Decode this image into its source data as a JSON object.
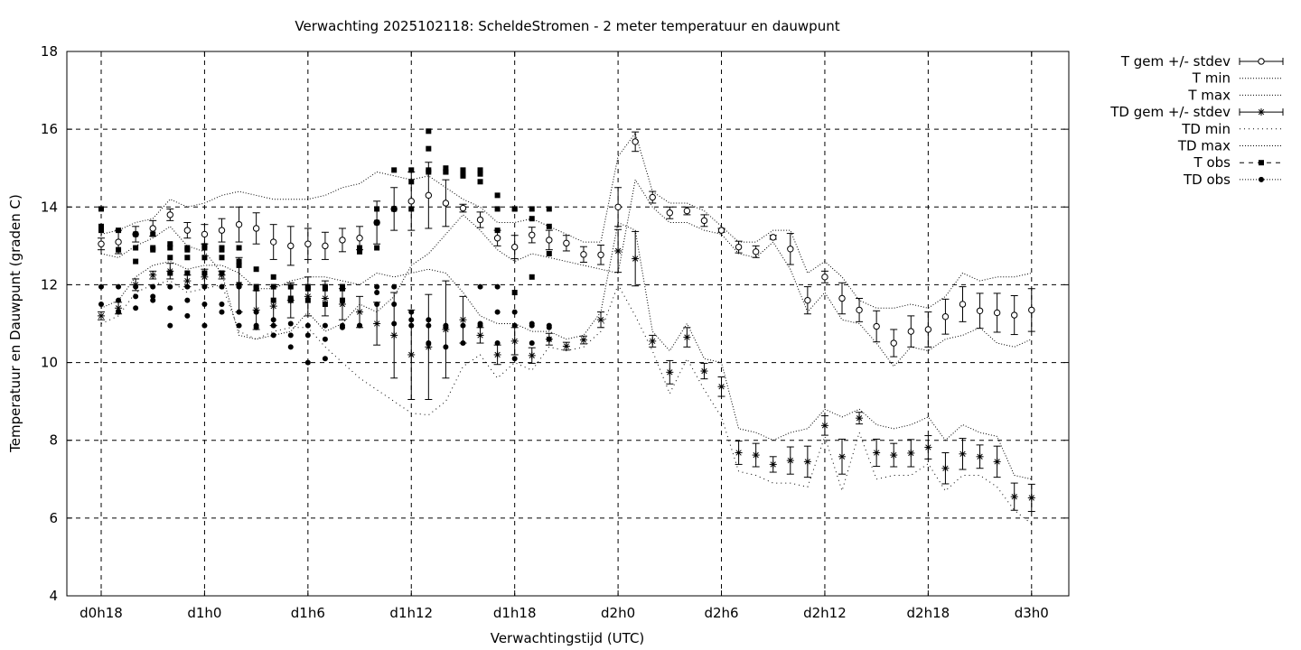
{
  "chart_data": {
    "type": "scatter",
    "title": "Verwachting 2025102118: ScheldeStromen - 2 meter temperatuur en dauwpunt",
    "xlabel": "Verwachtingstijd (UTC)",
    "ylabel": "Temperatuur en Dauwpunt (graden C)",
    "xlim": [
      -2,
      56
    ],
    "ylim": [
      4,
      18
    ],
    "x_ticks": [
      {
        "x": 0,
        "label": "d0h18"
      },
      {
        "x": 6,
        "label": "d1h0"
      },
      {
        "x": 12,
        "label": "d1h6"
      },
      {
        "x": 18,
        "label": "d1h12"
      },
      {
        "x": 24,
        "label": "d1h18"
      },
      {
        "x": 30,
        "label": "d2h0"
      },
      {
        "x": 36,
        "label": "d2h6"
      },
      {
        "x": 42,
        "label": "d2h12"
      },
      {
        "x": 48,
        "label": "d2h18"
      },
      {
        "x": 54,
        "label": "d3h0"
      }
    ],
    "y_ticks": [
      4,
      6,
      8,
      10,
      12,
      14,
      16,
      18
    ],
    "y_tick_labels": [
      "4",
      "6",
      "8",
      "10",
      "12",
      "14",
      "16",
      "18"
    ],
    "grid": true,
    "legend_position": "outside-right",
    "legend": [
      {
        "label": "T gem +/- stdev",
        "style": "errorbar-circle"
      },
      {
        "label": "T min",
        "style": "dotted"
      },
      {
        "label": "T max",
        "style": "dotted"
      },
      {
        "label": "TD gem +/- stdev",
        "style": "errorbar-star"
      },
      {
        "label": "TD min",
        "style": "dotted-sparse"
      },
      {
        "label": "TD max",
        "style": "dotted"
      },
      {
        "label": "T obs",
        "style": "dashed-square"
      },
      {
        "label": "TD obs",
        "style": "dotted-dot"
      }
    ],
    "series": [
      {
        "name": "T gem +/- stdev",
        "x": [
          0,
          1,
          2,
          3,
          4,
          5,
          6,
          7,
          8,
          9,
          10,
          11,
          12,
          13,
          14,
          15,
          16,
          17,
          18,
          19,
          20,
          21,
          22,
          23,
          24,
          25,
          26,
          27,
          28,
          29,
          30,
          31,
          32,
          33,
          34,
          35,
          36,
          37,
          38,
          39,
          40,
          41,
          42,
          43,
          44,
          45,
          46,
          47,
          48,
          49,
          50,
          51,
          52,
          53,
          54
        ],
        "values": [
          13.05,
          13.1,
          13.3,
          13.45,
          13.8,
          13.4,
          13.3,
          13.4,
          13.55,
          13.45,
          13.1,
          13.0,
          13.05,
          13.0,
          13.15,
          13.2,
          13.6,
          13.95,
          14.15,
          14.3,
          14.1,
          13.97,
          13.67,
          13.2,
          12.97,
          13.28,
          13.15,
          13.07,
          12.78,
          12.77,
          14.0,
          15.68,
          14.25,
          13.85,
          13.9,
          13.65,
          13.4,
          12.97,
          12.85,
          13.22,
          12.92,
          11.6,
          12.2,
          11.65,
          11.35,
          10.93,
          10.5,
          10.8,
          10.85,
          11.18,
          11.5,
          11.33,
          11.28,
          11.22,
          11.35
        ],
        "stdev": [
          0.15,
          0.3,
          0.2,
          0.2,
          0.15,
          0.2,
          0.25,
          0.3,
          0.45,
          0.4,
          0.45,
          0.5,
          0.4,
          0.35,
          0.3,
          0.3,
          0.55,
          0.55,
          0.75,
          0.85,
          0.6,
          0.1,
          0.2,
          0.2,
          0.3,
          0.2,
          0.25,
          0.2,
          0.2,
          0.25,
          0.5,
          0.25,
          0.15,
          0.15,
          0.1,
          0.15,
          0.05,
          0.15,
          0.15,
          0.05,
          0.4,
          0.35,
          0.15,
          0.4,
          0.3,
          0.4,
          0.35,
          0.4,
          0.45,
          0.45,
          0.45,
          0.45,
          0.5,
          0.5,
          0.55
        ]
      },
      {
        "name": "T min",
        "x": [
          0,
          1,
          2,
          3,
          4,
          5,
          6,
          7,
          8,
          9,
          10,
          11,
          12,
          13,
          14,
          15,
          16,
          17,
          18,
          19,
          20,
          21,
          22,
          23,
          24,
          25,
          26,
          27,
          28,
          29,
          30,
          31,
          32,
          33,
          34,
          35,
          36,
          37,
          38,
          39,
          40,
          41,
          42,
          43,
          44,
          45,
          46,
          47,
          48,
          49,
          50,
          51,
          52,
          53,
          54
        ],
        "values": [
          12.8,
          12.7,
          13.0,
          13.2,
          13.5,
          13.0,
          12.85,
          12.3,
          10.7,
          10.6,
          10.7,
          10.8,
          11.3,
          10.8,
          11.0,
          11.5,
          11.3,
          11.7,
          12.5,
          12.8,
          13.3,
          13.8,
          13.4,
          12.9,
          12.6,
          12.8,
          12.7,
          12.6,
          12.5,
          12.4,
          12.3,
          14.7,
          14.0,
          13.6,
          13.6,
          13.4,
          13.3,
          12.8,
          12.7,
          13.1,
          12.4,
          11.3,
          11.8,
          11.1,
          11.0,
          10.5,
          9.9,
          10.4,
          10.3,
          10.6,
          10.7,
          10.9,
          10.5,
          10.4,
          10.6
        ]
      },
      {
        "name": "T max",
        "x": [
          0,
          1,
          2,
          3,
          4,
          5,
          6,
          7,
          8,
          9,
          10,
          11,
          12,
          13,
          14,
          15,
          16,
          17,
          18,
          19,
          20,
          21,
          22,
          23,
          24,
          25,
          26,
          27,
          28,
          29,
          30,
          31,
          32,
          33,
          34,
          35,
          36,
          37,
          38,
          39,
          40,
          41,
          42,
          43,
          44,
          45,
          46,
          47,
          48,
          49,
          50,
          51,
          52,
          53,
          54
        ],
        "values": [
          13.3,
          13.4,
          13.6,
          13.7,
          14.2,
          14.0,
          14.1,
          14.3,
          14.4,
          14.3,
          14.2,
          14.2,
          14.2,
          14.3,
          14.5,
          14.6,
          14.9,
          14.8,
          14.7,
          14.8,
          14.5,
          14.2,
          14.0,
          13.6,
          13.6,
          13.7,
          13.5,
          13.3,
          13.1,
          13.1,
          15.3,
          15.9,
          14.4,
          14.1,
          14.1,
          13.9,
          13.5,
          13.1,
          13.1,
          13.4,
          13.4,
          12.3,
          12.6,
          12.2,
          11.6,
          11.4,
          11.4,
          11.5,
          11.4,
          11.7,
          12.3,
          12.1,
          12.2,
          12.2,
          12.3
        ]
      },
      {
        "name": "TD gem +/- stdev",
        "x": [
          0,
          1,
          2,
          3,
          4,
          5,
          6,
          7,
          8,
          9,
          10,
          11,
          12,
          13,
          14,
          15,
          16,
          17,
          18,
          19,
          20,
          21,
          22,
          23,
          24,
          25,
          26,
          27,
          28,
          29,
          30,
          31,
          32,
          33,
          34,
          35,
          36,
          37,
          38,
          39,
          40,
          41,
          42,
          43,
          44,
          45,
          46,
          47,
          48,
          49,
          50,
          51,
          52,
          53,
          54
        ],
        "values": [
          11.2,
          11.4,
          12.0,
          12.25,
          12.35,
          12.1,
          12.2,
          12.25,
          12.0,
          11.35,
          11.45,
          11.6,
          11.7,
          11.65,
          11.5,
          11.3,
          11.0,
          10.7,
          10.2,
          10.4,
          10.85,
          11.1,
          10.7,
          10.2,
          10.55,
          10.18,
          10.6,
          10.42,
          10.58,
          11.1,
          12.87,
          12.67,
          10.55,
          9.75,
          10.65,
          9.78,
          9.38,
          7.68,
          7.62,
          7.38,
          7.48,
          7.45,
          8.38,
          7.58,
          8.57,
          7.68,
          7.62,
          7.67,
          7.82,
          7.28,
          7.65,
          7.58,
          7.45,
          6.55,
          6.52
        ],
        "stdev": [
          0.1,
          0.15,
          0.15,
          0.1,
          0.2,
          0.15,
          0.2,
          0.1,
          0.7,
          0.5,
          0.5,
          0.45,
          0.5,
          0.45,
          0.4,
          0.4,
          0.55,
          1.1,
          1.15,
          1.35,
          1.25,
          0.6,
          0.2,
          0.25,
          0.35,
          0.2,
          0.15,
          0.1,
          0.1,
          0.2,
          0.55,
          0.7,
          0.15,
          0.3,
          0.25,
          0.2,
          0.25,
          0.3,
          0.3,
          0.2,
          0.35,
          0.4,
          0.25,
          0.45,
          0.15,
          0.35,
          0.3,
          0.35,
          0.3,
          0.4,
          0.4,
          0.3,
          0.4,
          0.35,
          0.35
        ]
      },
      {
        "name": "TD min",
        "x": [
          0,
          1,
          2,
          3,
          4,
          5,
          6,
          7,
          8,
          9,
          10,
          11,
          12,
          13,
          14,
          15,
          16,
          17,
          18,
          19,
          20,
          21,
          22,
          23,
          24,
          25,
          26,
          27,
          28,
          29,
          30,
          31,
          32,
          33,
          34,
          35,
          36,
          37,
          38,
          39,
          40,
          41,
          42,
          43,
          44,
          45,
          46,
          47,
          48,
          49,
          50,
          51,
          52,
          53,
          54
        ],
        "values": [
          11.0,
          11.2,
          11.8,
          12.0,
          12.1,
          11.8,
          11.9,
          12.0,
          10.8,
          10.6,
          10.8,
          10.9,
          10.9,
          10.4,
          10.0,
          9.6,
          9.3,
          9.0,
          8.7,
          8.65,
          9.0,
          9.9,
          10.2,
          9.6,
          10.0,
          9.8,
          10.4,
          10.3,
          10.4,
          10.8,
          12.0,
          11.2,
          10.3,
          9.2,
          10.1,
          9.3,
          8.6,
          7.2,
          7.1,
          6.9,
          6.9,
          6.8,
          8.1,
          6.7,
          8.2,
          7.0,
          7.1,
          7.1,
          7.4,
          6.7,
          7.1,
          7.1,
          6.8,
          6.2,
          5.85
        ]
      },
      {
        "name": "TD max",
        "x": [
          0,
          1,
          2,
          3,
          4,
          5,
          6,
          7,
          8,
          9,
          10,
          11,
          12,
          13,
          14,
          15,
          16,
          17,
          18,
          19,
          20,
          21,
          22,
          23,
          24,
          25,
          26,
          27,
          28,
          29,
          30,
          31,
          32,
          33,
          34,
          35,
          36,
          37,
          38,
          39,
          40,
          41,
          42,
          43,
          44,
          45,
          46,
          47,
          48,
          49,
          50,
          51,
          52,
          53,
          54
        ],
        "values": [
          11.4,
          11.6,
          12.2,
          12.5,
          12.6,
          12.4,
          12.5,
          12.5,
          12.3,
          11.9,
          11.9,
          12.1,
          12.2,
          12.2,
          12.1,
          12.0,
          12.3,
          12.2,
          12.3,
          12.4,
          12.3,
          11.8,
          11.2,
          11.0,
          11.0,
          10.8,
          10.8,
          10.6,
          10.7,
          11.3,
          13.6,
          13.4,
          10.8,
          10.3,
          11.0,
          10.1,
          10.0,
          8.3,
          8.2,
          8.0,
          8.2,
          8.3,
          8.8,
          8.6,
          8.8,
          8.4,
          8.3,
          8.4,
          8.6,
          8.0,
          8.4,
          8.2,
          8.1,
          7.1,
          7.0
        ]
      },
      {
        "name": "T obs",
        "x": [
          0,
          0,
          0,
          1,
          1,
          2,
          2,
          2,
          3,
          3,
          3,
          4,
          4,
          4,
          4,
          5,
          5,
          5,
          5,
          6,
          6,
          6,
          6,
          7,
          7,
          7,
          7,
          8,
          8,
          8,
          8,
          9,
          9,
          9,
          10,
          10,
          10,
          11,
          11,
          11,
          12,
          12,
          12,
          13,
          13,
          13,
          14,
          14,
          14,
          15,
          15,
          16,
          16,
          16,
          17,
          17,
          17,
          18,
          18,
          18,
          19,
          19,
          19,
          19,
          20,
          20,
          20,
          21,
          21,
          21,
          22,
          22,
          22,
          23,
          23,
          23,
          24,
          24,
          24,
          25,
          25,
          25,
          26,
          26,
          26
        ],
        "values": [
          13.95,
          13.5,
          13.4,
          13.4,
          12.9,
          13.3,
          12.95,
          12.6,
          13.3,
          12.9,
          12.95,
          13.05,
          12.95,
          12.7,
          12.3,
          12.95,
          12.9,
          12.7,
          12.3,
          13.0,
          12.95,
          12.7,
          12.3,
          12.95,
          12.9,
          12.7,
          12.3,
          12.95,
          12.6,
          12.5,
          12.0,
          12.4,
          11.95,
          11.9,
          12.2,
          11.95,
          11.6,
          11.95,
          11.65,
          11.6,
          11.95,
          11.9,
          11.6,
          11.95,
          11.9,
          11.5,
          11.95,
          11.9,
          11.6,
          12.95,
          12.85,
          13.95,
          13.6,
          12.95,
          14.95,
          13.95,
          13.95,
          14.95,
          14.65,
          13.95,
          15.95,
          15.5,
          14.95,
          14.9,
          15.0,
          14.9,
          14.9,
          14.95,
          14.85,
          14.8,
          14.95,
          14.85,
          14.65,
          14.3,
          13.95,
          13.4,
          13.95,
          13.95,
          11.8,
          13.95,
          13.7,
          12.2,
          13.95,
          13.5,
          12.8
        ]
      },
      {
        "name": "TD obs",
        "x": [
          0,
          0,
          1,
          1,
          1,
          2,
          2,
          2,
          3,
          3,
          3,
          4,
          4,
          4,
          5,
          5,
          5,
          6,
          6,
          6,
          7,
          7,
          7,
          8,
          8,
          8,
          9,
          9,
          9,
          10,
          10,
          10,
          11,
          11,
          11,
          12,
          12,
          12,
          13,
          13,
          13,
          14,
          14,
          15,
          15,
          16,
          16,
          16,
          17,
          17,
          17,
          18,
          18,
          18,
          19,
          19,
          19,
          20,
          20,
          20,
          21,
          21,
          22,
          22,
          22,
          23,
          23,
          23,
          24,
          24,
          24,
          25,
          25,
          25,
          26,
          26,
          26
        ],
        "values": [
          11.95,
          11.5,
          11.95,
          11.6,
          11.3,
          11.95,
          11.7,
          11.4,
          11.95,
          11.7,
          11.6,
          11.95,
          11.4,
          10.95,
          11.95,
          11.6,
          11.2,
          11.95,
          11.5,
          10.95,
          11.95,
          11.5,
          11.3,
          11.95,
          11.3,
          10.95,
          11.3,
          10.95,
          10.9,
          11.1,
          10.95,
          10.7,
          11.0,
          10.7,
          10.4,
          10.95,
          10.7,
          10.0,
          10.95,
          10.6,
          10.1,
          10.95,
          10.9,
          10.95,
          10.95,
          11.95,
          11.8,
          11.5,
          11.95,
          11.5,
          11.0,
          11.3,
          11.1,
          10.95,
          11.1,
          10.95,
          10.5,
          10.95,
          10.9,
          10.4,
          10.95,
          10.5,
          11.95,
          11.0,
          10.95,
          11.95,
          11.3,
          10.5,
          11.3,
          10.95,
          10.1,
          11.0,
          10.95,
          10.5,
          10.95,
          10.9,
          10.6
        ]
      }
    ]
  }
}
